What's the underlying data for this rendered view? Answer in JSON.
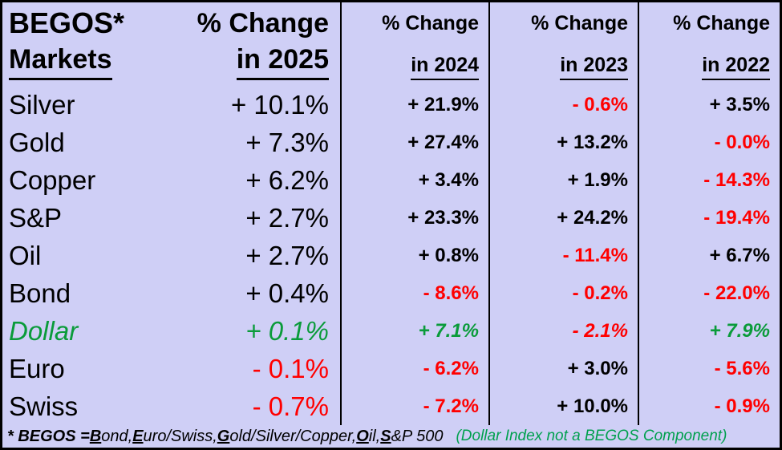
{
  "header": {
    "title_line1": "BEGOS*",
    "title_line2": "Markets",
    "cols": [
      {
        "line1": "% Change",
        "line2": "in 2025"
      },
      {
        "line1": "% Change",
        "line2": "in 2024"
      },
      {
        "line1": "% Change",
        "line2": "in 2023"
      },
      {
        "line1": "% Change",
        "line2": "in 2022"
      }
    ]
  },
  "rows": [
    {
      "label": "Silver",
      "tone": "plain",
      "values": {
        "y2025": {
          "text": "+ 10.1%",
          "tone": "pos"
        },
        "y2024": {
          "text": "+ 21.9%",
          "tone": "pos"
        },
        "y2023": {
          "text": "- 0.6%",
          "tone": "neg"
        },
        "y2022": {
          "text": "+ 3.5%",
          "tone": "pos"
        }
      }
    },
    {
      "label": "Gold",
      "tone": "plain",
      "values": {
        "y2025": {
          "text": "+ 7.3%",
          "tone": "pos"
        },
        "y2024": {
          "text": "+ 27.4%",
          "tone": "pos"
        },
        "y2023": {
          "text": "+ 13.2%",
          "tone": "pos"
        },
        "y2022": {
          "text": "- 0.0%",
          "tone": "neg"
        }
      }
    },
    {
      "label": "Copper",
      "tone": "plain",
      "values": {
        "y2025": {
          "text": "+ 6.2%",
          "tone": "pos"
        },
        "y2024": {
          "text": "+ 3.4%",
          "tone": "pos"
        },
        "y2023": {
          "text": "+ 1.9%",
          "tone": "pos"
        },
        "y2022": {
          "text": "- 14.3%",
          "tone": "neg"
        }
      }
    },
    {
      "label": "S&P",
      "tone": "plain",
      "values": {
        "y2025": {
          "text": "+ 2.7%",
          "tone": "pos"
        },
        "y2024": {
          "text": "+ 23.3%",
          "tone": "pos"
        },
        "y2023": {
          "text": "+ 24.2%",
          "tone": "pos"
        },
        "y2022": {
          "text": "- 19.4%",
          "tone": "neg"
        }
      }
    },
    {
      "label": "Oil",
      "tone": "plain",
      "values": {
        "y2025": {
          "text": "+ 2.7%",
          "tone": "pos"
        },
        "y2024": {
          "text": "+ 0.8%",
          "tone": "pos"
        },
        "y2023": {
          "text": "- 11.4%",
          "tone": "neg"
        },
        "y2022": {
          "text": "+ 6.7%",
          "tone": "pos"
        }
      }
    },
    {
      "label": "Bond",
      "tone": "plain",
      "values": {
        "y2025": {
          "text": "+ 0.4%",
          "tone": "pos"
        },
        "y2024": {
          "text": "- 8.6%",
          "tone": "neg"
        },
        "y2023": {
          "text": "- 0.2%",
          "tone": "neg"
        },
        "y2022": {
          "text": "- 22.0%",
          "tone": "neg"
        }
      }
    },
    {
      "label": "Dollar",
      "tone": "dollar",
      "values": {
        "y2025": {
          "text": "+ 0.1%",
          "tone": "pos-it"
        },
        "y2024": {
          "text": "+ 7.1%",
          "tone": "pos-it"
        },
        "y2023": {
          "text": "- 2.1%",
          "tone": "neg-it"
        },
        "y2022": {
          "text": "+ 7.9%",
          "tone": "pos-it"
        }
      }
    },
    {
      "label": "Euro",
      "tone": "plain",
      "values": {
        "y2025": {
          "text": "- 0.1%",
          "tone": "neg"
        },
        "y2024": {
          "text": "- 6.2%",
          "tone": "neg"
        },
        "y2023": {
          "text": "+ 3.0%",
          "tone": "pos"
        },
        "y2022": {
          "text": "- 5.6%",
          "tone": "neg"
        }
      }
    },
    {
      "label": "Swiss",
      "tone": "plain",
      "values": {
        "y2025": {
          "text": "- 0.7%",
          "tone": "neg"
        },
        "y2024": {
          "text": "- 7.2%",
          "tone": "neg"
        },
        "y2023": {
          "text": "+ 10.0%",
          "tone": "pos"
        },
        "y2022": {
          "text": "- 0.9%",
          "tone": "neg"
        }
      }
    }
  ],
  "footer": {
    "lead": "* BEGOS = ",
    "parts": [
      {
        "cap": "B",
        "rest": "ond, "
      },
      {
        "cap": "E",
        "rest": "uro/Swiss, "
      },
      {
        "cap": "G",
        "rest": "old/Silver/Copper, "
      },
      {
        "cap": "O",
        "rest": "il, "
      },
      {
        "cap": "S",
        "rest": "&P 500"
      }
    ],
    "note": "(Dollar Index not a BEGOS Component)"
  },
  "colors": {
    "background": "#cfcff6",
    "positive": "#000000",
    "negative": "#ff0000",
    "dollar_green": "#0a9b3a",
    "note_green": "#00a04e"
  },
  "chart_data": {
    "type": "table",
    "title": "BEGOS Markets % Change by Year",
    "columns": [
      "Market",
      "% Change in 2025",
      "% Change in 2024",
      "% Change in 2023",
      "% Change in 2022"
    ],
    "rows": [
      {
        "market": "Silver",
        "y2025": 10.1,
        "y2024": 21.9,
        "y2023": -0.6,
        "y2022": 3.5
      },
      {
        "market": "Gold",
        "y2025": 7.3,
        "y2024": 27.4,
        "y2023": 13.2,
        "y2022": -0.0
      },
      {
        "market": "Copper",
        "y2025": 6.2,
        "y2024": 3.4,
        "y2023": 1.9,
        "y2022": -14.3
      },
      {
        "market": "S&P",
        "y2025": 2.7,
        "y2024": 23.3,
        "y2023": 24.2,
        "y2022": -19.4
      },
      {
        "market": "Oil",
        "y2025": 2.7,
        "y2024": 0.8,
        "y2023": -11.4,
        "y2022": 6.7
      },
      {
        "market": "Bond",
        "y2025": 0.4,
        "y2024": -8.6,
        "y2023": -0.2,
        "y2022": -22.0
      },
      {
        "market": "Dollar",
        "y2025": 0.1,
        "y2024": 7.1,
        "y2023": -2.1,
        "y2022": 7.9
      },
      {
        "market": "Euro",
        "y2025": -0.1,
        "y2024": -6.2,
        "y2023": 3.0,
        "y2022": -5.6
      },
      {
        "market": "Swiss",
        "y2025": -0.7,
        "y2024": -7.2,
        "y2023": 10.0,
        "y2022": -0.9
      }
    ],
    "notes": "Positive values black (green italic for Dollar), negative values red. Footnote defines BEGOS acronym."
  }
}
